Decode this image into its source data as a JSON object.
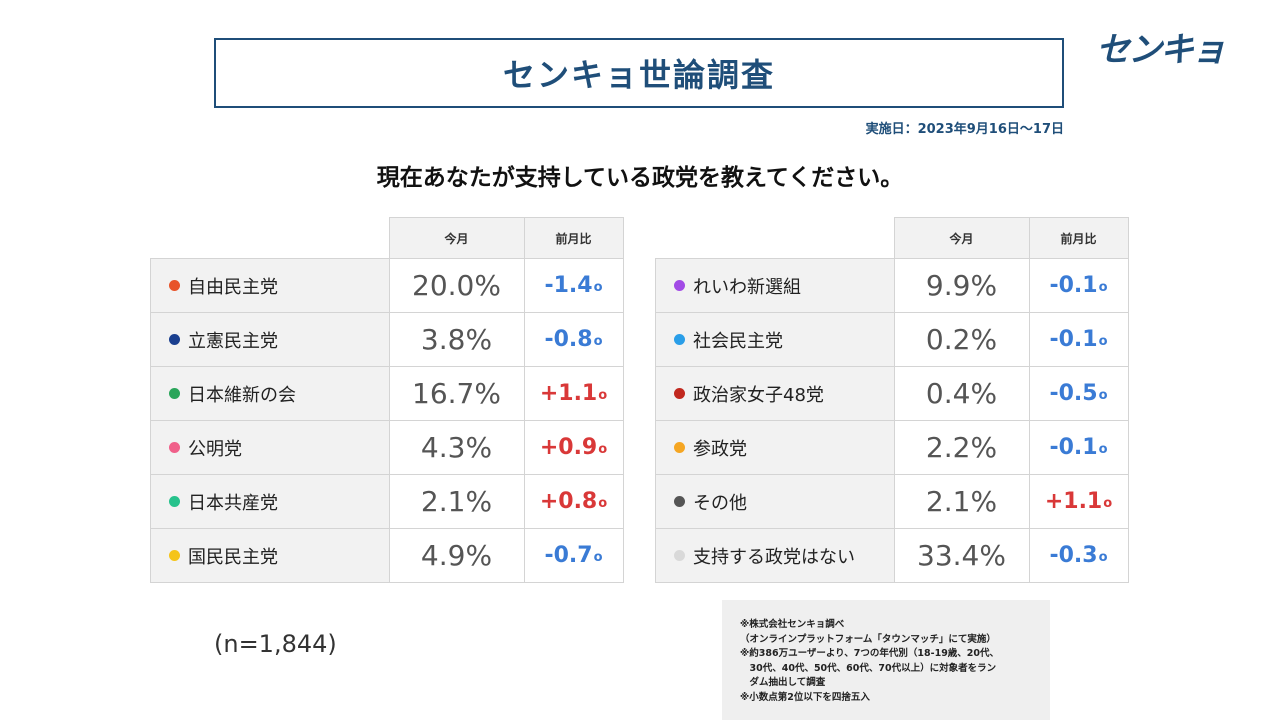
{
  "header": {
    "title": "センキョ世論調査",
    "logo": "センキョ",
    "date": "実施日：2023年9月16日～17日",
    "question": "現在あなたが支持している政党を教えてください。"
  },
  "chart_data": {
    "type": "table",
    "columns": [
      "今月",
      "前月比"
    ],
    "change_unit": "o",
    "rows": [
      {
        "party": "自由民主党",
        "dot": "#e8542a",
        "current": "20.0%",
        "change": "-1.4",
        "dir": "neg"
      },
      {
        "party": "立憲民主党",
        "dot": "#1a3f8f",
        "current": "3.8%",
        "change": "-0.8",
        "dir": "neg"
      },
      {
        "party": "日本維新の会",
        "dot": "#2aa55a",
        "current": "16.7%",
        "change": "+1.1",
        "dir": "pos"
      },
      {
        "party": "公明党",
        "dot": "#f0608a",
        "current": "4.3%",
        "change": "+0.9",
        "dir": "pos"
      },
      {
        "party": "日本共産党",
        "dot": "#27c28c",
        "current": "2.1%",
        "change": "+0.8",
        "dir": "pos"
      },
      {
        "party": "国民民主党",
        "dot": "#f5c418",
        "current": "4.9%",
        "change": "-0.7",
        "dir": "neg"
      },
      {
        "party": "れいわ新選組",
        "dot": "#a24be6",
        "current": "9.9%",
        "change": "-0.1",
        "dir": "neg"
      },
      {
        "party": "社会民主党",
        "dot": "#2a9ee8",
        "current": "0.2%",
        "change": "-0.1",
        "dir": "neg"
      },
      {
        "party": "政治家女子48党",
        "dot": "#c1281e",
        "current": "0.4%",
        "change": "-0.5",
        "dir": "neg"
      },
      {
        "party": "参政党",
        "dot": "#f5a623",
        "current": "2.2%",
        "change": "-0.1",
        "dir": "neg"
      },
      {
        "party": "その他",
        "dot": "#555555",
        "current": "2.1%",
        "change": "+1.1",
        "dir": "pos"
      },
      {
        "party": "支持する政党はない",
        "dot": "#d9d9d9",
        "current": "33.4%",
        "change": "-0.3",
        "dir": "neg"
      }
    ]
  },
  "sample": "(n=1,844)",
  "notes": [
    "※株式会社センキョ調べ",
    "（オンラインプラットフォーム「タウンマッチ」にて実施）",
    "※約386万ユーザーより、7つの年代別（18-19歳、20代、",
    "　30代、40代、50代、60代、70代以上）に対象者をラン",
    "　ダム抽出して調査",
    "※小数点第2位以下を四捨五入"
  ]
}
